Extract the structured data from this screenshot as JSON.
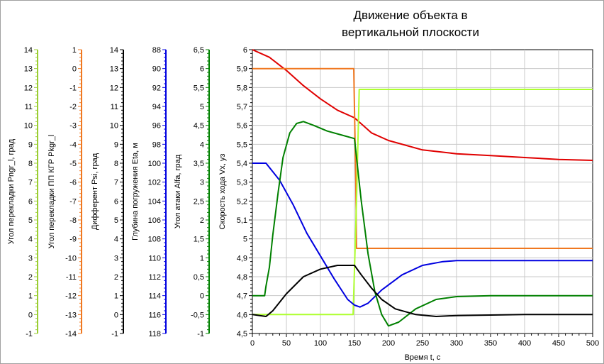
{
  "chart_data": {
    "type": "line",
    "title_lines": [
      "Движение объекта в",
      "вертикальной плоскости"
    ],
    "xlabel": "Время t, с",
    "xlim": [
      0,
      500
    ],
    "x_ticks": [
      0,
      50,
      100,
      150,
      200,
      250,
      300,
      350,
      400,
      450,
      500
    ],
    "grid": true,
    "axes": [
      {
        "name": "Угол перекладки Pngr_l, град",
        "color": "#9ACD32",
        "ticks": [
          14,
          13,
          12,
          11,
          10,
          9,
          8,
          7,
          6,
          5,
          4,
          3,
          2,
          1,
          0,
          -1
        ],
        "ylim": [
          -1,
          14
        ]
      },
      {
        "name": "Угол перекладки ПП КГР Pkgr_l",
        "color": "#F07820",
        "ticks": [
          1,
          0,
          -1,
          -2,
          -3,
          -4,
          -5,
          -6,
          -7,
          -8,
          -9,
          -10,
          -11,
          -12,
          -13,
          -14
        ],
        "ylim": [
          -14,
          1
        ]
      },
      {
        "name": "Дифферент Psi, град",
        "color": "#000000",
        "ticks": [
          14,
          13,
          12,
          11,
          10,
          9,
          8,
          7,
          6,
          5,
          4,
          3,
          2,
          1,
          0,
          -1
        ],
        "ylim": [
          -1,
          14
        ]
      },
      {
        "name": "Глубина погружения Eta, м",
        "color": "#0000E0",
        "ticks": [
          88,
          90,
          92,
          94,
          96,
          98,
          100,
          102,
          104,
          106,
          108,
          110,
          112,
          114,
          116,
          118
        ],
        "ylim": [
          88,
          118
        ],
        "inverted": true
      },
      {
        "name": "Угол атаки Alfa, град",
        "color": "#008000",
        "ticks": [
          6.5,
          6,
          5.5,
          5,
          4.5,
          4,
          3.5,
          3,
          2.5,
          2,
          1.5,
          1,
          0.5,
          0,
          -0.5,
          -1
        ],
        "ylim": [
          -1,
          6.5
        ]
      },
      {
        "name": "Скорость хода Vx, уз",
        "color": "#000000",
        "ticks": [
          6,
          5.9,
          5.8,
          5.7,
          5.6,
          5.5,
          5.4,
          5.3,
          5.2,
          5.1,
          5,
          4.9,
          4.8,
          4.7,
          4.6,
          4.5
        ],
        "ylim": [
          4.5,
          6
        ]
      }
    ],
    "series": [
      {
        "color": "#E00000",
        "x": [
          0,
          25,
          50,
          75,
          100,
          125,
          150,
          175,
          200,
          250,
          300,
          350,
          400,
          450,
          500
        ],
        "y": [
          6.0,
          5.96,
          5.89,
          5.81,
          5.74,
          5.68,
          5.64,
          5.56,
          5.52,
          5.47,
          5.45,
          5.44,
          5.43,
          5.42,
          5.415
        ]
      },
      {
        "color": "#F07820",
        "x": [
          0,
          149,
          152,
          153,
          500
        ],
        "y": [
          5.9,
          5.9,
          5.3,
          4.95,
          4.95
        ]
      },
      {
        "color": "#ADFF2F",
        "x": [
          0,
          148,
          153,
          157,
          500
        ],
        "y": [
          4.6,
          4.6,
          5.2,
          5.79,
          5.79
        ]
      },
      {
        "color": "#0000E0",
        "x": [
          0,
          20,
          40,
          60,
          80,
          100,
          120,
          140,
          150,
          158,
          170,
          190,
          220,
          250,
          280,
          300,
          350,
          400,
          450,
          500
        ],
        "y": [
          5.4,
          5.4,
          5.31,
          5.18,
          5.03,
          4.91,
          4.79,
          4.68,
          4.65,
          4.64,
          4.66,
          4.73,
          4.81,
          4.86,
          4.88,
          4.885,
          4.885,
          4.885,
          4.885,
          4.885
        ]
      },
      {
        "color": "#008000",
        "x": [
          0,
          18,
          20,
          25,
          30,
          38,
          45,
          55,
          65,
          75,
          90,
          110,
          130,
          150,
          160,
          170,
          180,
          190,
          200,
          215,
          240,
          270,
          300,
          350,
          400,
          500
        ],
        "y": [
          4.7,
          4.7,
          4.75,
          4.85,
          5.02,
          5.25,
          5.43,
          5.56,
          5.61,
          5.62,
          5.6,
          5.57,
          5.55,
          5.53,
          5.2,
          4.92,
          4.72,
          4.6,
          4.54,
          4.56,
          4.63,
          4.68,
          4.695,
          4.7,
          4.7,
          4.7
        ]
      },
      {
        "color": "#000000",
        "x": [
          0,
          20,
          30,
          50,
          75,
          100,
          125,
          150,
          160,
          175,
          190,
          210,
          240,
          270,
          300,
          400,
          500
        ],
        "y": [
          4.6,
          4.59,
          4.62,
          4.71,
          4.8,
          4.84,
          4.86,
          4.86,
          4.81,
          4.74,
          4.68,
          4.63,
          4.6,
          4.59,
          4.595,
          4.6,
          4.6
        ]
      }
    ]
  }
}
